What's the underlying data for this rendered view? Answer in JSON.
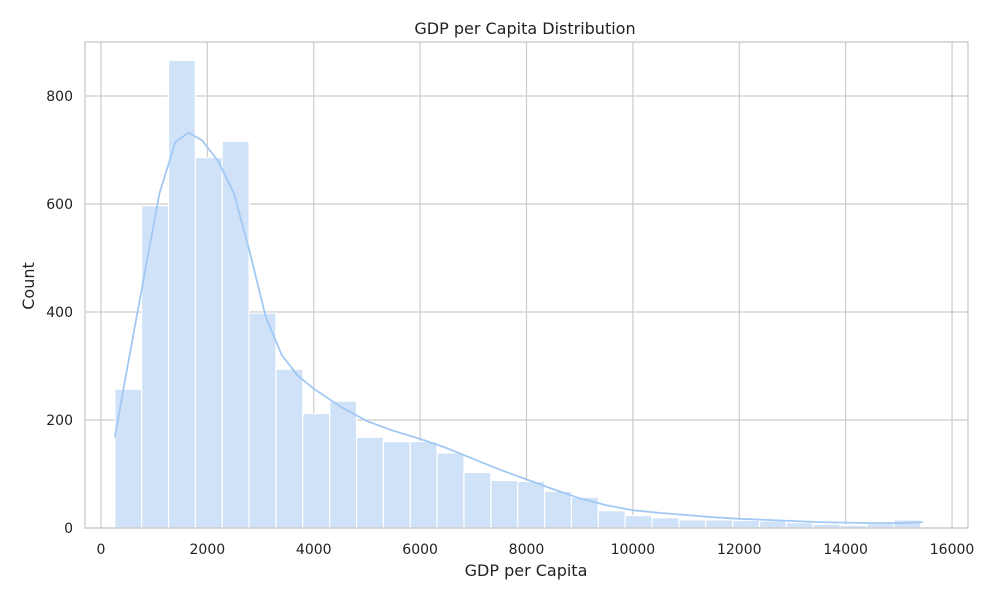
{
  "chart_data": {
    "type": "bar",
    "subtype": "histogram",
    "title": "GDP per Capita Distribution",
    "xlabel": "GDP per Capita",
    "ylabel": "Count",
    "xlim": [
      -300,
      16300
    ],
    "ylim": [
      0,
      900
    ],
    "xticks": [
      0,
      2000,
      4000,
      6000,
      8000,
      10000,
      12000,
      14000,
      16000
    ],
    "xtick_labels": [
      "0",
      "2000",
      "4000",
      "6000",
      "8000",
      "10000",
      "12000",
      "14000",
      "16000"
    ],
    "yticks": [
      0,
      200,
      400,
      600,
      800
    ],
    "ytick_labels": [
      "0",
      "200",
      "400",
      "600",
      "800"
    ],
    "grid": true,
    "bar_color": "#cfe2f8",
    "line_color": "#a1c9f4",
    "bin_start": 260,
    "bin_width": 505,
    "counts": [
      257,
      597,
      866,
      686,
      716,
      398,
      294,
      212,
      235,
      168,
      160,
      160,
      139,
      103,
      88,
      86,
      68,
      57,
      32,
      23,
      19,
      15,
      15,
      14,
      13,
      10,
      7,
      5,
      8,
      15
    ],
    "kde": {
      "x": [
        260,
        500,
        800,
        1100,
        1400,
        1650,
        1900,
        2200,
        2500,
        2800,
        3100,
        3400,
        3700,
        4000,
        4500,
        5000,
        5500,
        6000,
        6500,
        7000,
        7500,
        8000,
        8500,
        9000,
        9500,
        10000,
        10500,
        11000,
        11500,
        12000,
        12500,
        13000,
        13500,
        14000,
        14500,
        15000,
        15450
      ],
      "y": [
        168,
        300,
        460,
        620,
        715,
        732,
        718,
        680,
        620,
        510,
        390,
        320,
        282,
        258,
        225,
        198,
        180,
        165,
        148,
        128,
        108,
        90,
        72,
        55,
        42,
        33,
        28,
        24,
        20,
        17,
        15,
        13,
        11,
        10,
        9,
        9,
        11
      ]
    }
  }
}
